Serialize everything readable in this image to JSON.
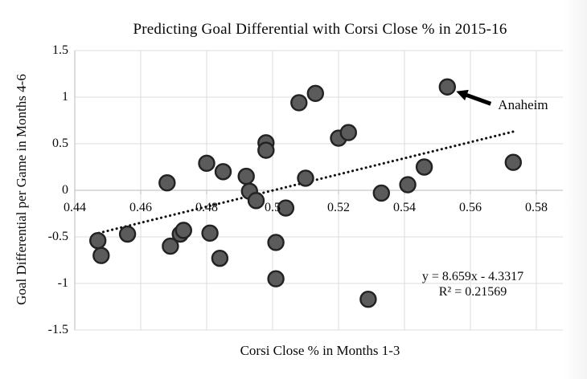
{
  "page": {
    "background": "#ffffff"
  },
  "chart_data": {
    "type": "scatter",
    "title": "Predicting Goal Differential with Corsi Close % in 2015-16",
    "xlabel": "Corsi Close % in Months 1-3",
    "ylabel": "Goal Differential per Game in Months 4-6",
    "xlim": [
      0.44,
      0.586
    ],
    "ylim": [
      -1.5,
      1.5
    ],
    "grid": true,
    "xticks": [
      0.44,
      0.46,
      0.48,
      0.5,
      0.52,
      0.54,
      0.56,
      0.58
    ],
    "xtick_labels": [
      "0.44",
      "0.46",
      "0.48",
      "0.5",
      "0.52",
      "0.54",
      "0.56",
      "0.58"
    ],
    "yticks": [
      1.5,
      1.0,
      0.5,
      0.0,
      -0.5,
      -1.0,
      -1.5
    ],
    "ytick_labels": [
      "1.5",
      "1",
      "0.5",
      "0",
      "-0.5",
      "-1",
      "-1.5"
    ],
    "points": [
      [
        0.447,
        -0.54
      ],
      [
        0.448,
        -0.7
      ],
      [
        0.456,
        -0.47
      ],
      [
        0.468,
        0.08
      ],
      [
        0.469,
        -0.6
      ],
      [
        0.472,
        -0.47
      ],
      [
        0.473,
        -0.43
      ],
      [
        0.48,
        0.29
      ],
      [
        0.481,
        -0.46
      ],
      [
        0.484,
        -0.73
      ],
      [
        0.485,
        0.2
      ],
      [
        0.492,
        0.15
      ],
      [
        0.493,
        -0.01
      ],
      [
        0.495,
        -0.11
      ],
      [
        0.498,
        0.51
      ],
      [
        0.498,
        0.43
      ],
      [
        0.501,
        -0.56
      ],
      [
        0.501,
        -0.95
      ],
      [
        0.504,
        -0.19
      ],
      [
        0.508,
        0.94
      ],
      [
        0.51,
        0.13
      ],
      [
        0.513,
        1.04
      ],
      [
        0.52,
        0.56
      ],
      [
        0.523,
        0.62
      ],
      [
        0.529,
        -1.17
      ],
      [
        0.533,
        -0.03
      ],
      [
        0.541,
        0.06
      ],
      [
        0.546,
        0.25
      ],
      [
        0.553,
        1.11
      ],
      [
        0.573,
        0.3
      ]
    ],
    "trendline": {
      "equation": "y = 8.659x - 4.3317",
      "r_squared": "R² = 0.21569",
      "slope": 8.659,
      "intercept": -4.3317,
      "x_start": 0.4473,
      "x_end": 0.5732,
      "style": "dotted"
    },
    "annotation": {
      "label": "Anaheim",
      "point": [
        0.553,
        1.11
      ]
    },
    "legend": "none",
    "colors": {
      "point_fill": "#5b5b5b",
      "point_stroke": "#222222",
      "grid": "#dcdcdc",
      "axis": "#c6c6c6",
      "trendline": "#111111",
      "text": "#0a0a0a"
    }
  }
}
